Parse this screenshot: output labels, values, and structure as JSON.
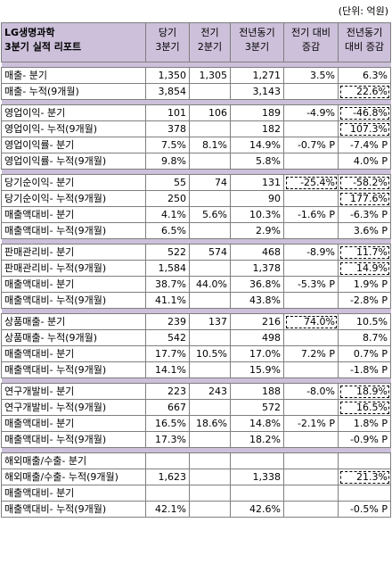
{
  "unit_label": "(단위: 억원)",
  "header": {
    "title_line1": "LG생명과학",
    "title_line2": "3분기 실적 리포트",
    "col1_line1": "당기",
    "col1_line2": "3분기",
    "col2_line1": "전기",
    "col2_line2": "2분기",
    "col3_line1": "전년동기",
    "col3_line2": "3분기",
    "col4_line1": "전기 대비",
    "col4_line2": "증감",
    "col5_line1": "전년동기",
    "col5_line2": "대비 증감"
  },
  "groups": [
    {
      "rows": [
        {
          "label": "매출- 분기",
          "cur": "1,350",
          "prev": "1,305",
          "yoy": "1,271",
          "qoq_chg": "3.5%",
          "yoy_chg": "6.3%",
          "qoq_box": false,
          "yoy_box": false
        },
        {
          "label": "매출- 누적(9개월)",
          "cur": "3,854",
          "prev": "",
          "yoy": "3,143",
          "qoq_chg": "",
          "yoy_chg": "22.6%",
          "qoq_box": false,
          "yoy_box": true
        }
      ]
    },
    {
      "rows": [
        {
          "label": "영업이익- 분기",
          "cur": "101",
          "prev": "106",
          "yoy": "189",
          "qoq_chg": "-4.9%",
          "yoy_chg": "-46.8%",
          "qoq_box": false,
          "yoy_box": true
        },
        {
          "label": "영업이익- 누적(9개월)",
          "cur": "378",
          "prev": "",
          "yoy": "182",
          "qoq_chg": "",
          "yoy_chg": "107.3%",
          "qoq_box": false,
          "yoy_box": true
        },
        {
          "label": "영업이익률- 분기",
          "cur": "7.5%",
          "prev": "8.1%",
          "yoy": "14.9%",
          "qoq_chg": "-0.7% P",
          "yoy_chg": "-7.4% P",
          "qoq_box": false,
          "yoy_box": false
        },
        {
          "label": "영업이익률- 누적(9개월)",
          "cur": "9.8%",
          "prev": "",
          "yoy": "5.8%",
          "qoq_chg": "",
          "yoy_chg": "4.0% P",
          "qoq_box": false,
          "yoy_box": false
        }
      ]
    },
    {
      "rows": [
        {
          "label": "당기순이익- 분기",
          "cur": "55",
          "prev": "74",
          "yoy": "131",
          "qoq_chg": "-25.4%",
          "yoy_chg": "-58.2%",
          "qoq_box": true,
          "yoy_box": true
        },
        {
          "label": "당기순이익- 누적(9개월)",
          "cur": "250",
          "prev": "",
          "yoy": "90",
          "qoq_chg": "",
          "yoy_chg": "177.6%",
          "qoq_box": false,
          "yoy_box": true
        },
        {
          "label": "매출액대비- 분기",
          "cur": "4.1%",
          "prev": "5.6%",
          "yoy": "10.3%",
          "qoq_chg": "-1.6% P",
          "yoy_chg": "-6.3% P",
          "qoq_box": false,
          "yoy_box": false
        },
        {
          "label": "매출액대비- 누적(9개월)",
          "cur": "6.5%",
          "prev": "",
          "yoy": "2.9%",
          "qoq_chg": "",
          "yoy_chg": "3.6% P",
          "qoq_box": false,
          "yoy_box": false
        }
      ]
    },
    {
      "rows": [
        {
          "label": "판매관리비- 분기",
          "cur": "522",
          "prev": "574",
          "yoy": "468",
          "qoq_chg": "-8.9%",
          "yoy_chg": "11.7%",
          "qoq_box": false,
          "yoy_box": true
        },
        {
          "label": "판매관리비- 누적(9개월)",
          "cur": "1,584",
          "prev": "",
          "yoy": "1,378",
          "qoq_chg": "",
          "yoy_chg": "14.9%",
          "qoq_box": false,
          "yoy_box": true
        },
        {
          "label": "매출액대비- 분기",
          "cur": "38.7%",
          "prev": "44.0%",
          "yoy": "36.8%",
          "qoq_chg": "-5.3% P",
          "yoy_chg": "1.9% P",
          "qoq_box": false,
          "yoy_box": false
        },
        {
          "label": "매출액대비- 누적(9개월)",
          "cur": "41.1%",
          "prev": "",
          "yoy": "43.8%",
          "qoq_chg": "",
          "yoy_chg": "-2.8% P",
          "qoq_box": false,
          "yoy_box": false
        }
      ]
    },
    {
      "rows": [
        {
          "label": "상품매출- 분기",
          "cur": "239",
          "prev": "137",
          "yoy": "216",
          "qoq_chg": "74.0%",
          "yoy_chg": "10.5%",
          "qoq_box": true,
          "yoy_box": false
        },
        {
          "label": "상품매출- 누적(9개월)",
          "cur": "542",
          "prev": "",
          "yoy": "498",
          "qoq_chg": "",
          "yoy_chg": "8.7%",
          "qoq_box": false,
          "yoy_box": false
        },
        {
          "label": "매출액대비- 분기",
          "cur": "17.7%",
          "prev": "10.5%",
          "yoy": "17.0%",
          "qoq_chg": "7.2% P",
          "yoy_chg": "0.7% P",
          "qoq_box": false,
          "yoy_box": false
        },
        {
          "label": "매출액대비- 누적(9개월)",
          "cur": "14.1%",
          "prev": "",
          "yoy": "15.9%",
          "qoq_chg": "",
          "yoy_chg": "-1.8% P",
          "qoq_box": false,
          "yoy_box": false
        }
      ]
    },
    {
      "rows": [
        {
          "label": "연구개발비- 분기",
          "cur": "223",
          "prev": "243",
          "yoy": "188",
          "qoq_chg": "-8.0%",
          "yoy_chg": "18.9%",
          "qoq_box": false,
          "yoy_box": true
        },
        {
          "label": "연구개발비- 누적(9개월)",
          "cur": "667",
          "prev": "",
          "yoy": "572",
          "qoq_chg": "",
          "yoy_chg": "16.5%",
          "qoq_box": false,
          "yoy_box": true
        },
        {
          "label": "매출액대비- 분기",
          "cur": "16.5%",
          "prev": "18.6%",
          "yoy": "14.8%",
          "qoq_chg": "-2.1% P",
          "yoy_chg": "1.8% P",
          "qoq_box": false,
          "yoy_box": false
        },
        {
          "label": "매출액대비- 누적(9개월)",
          "cur": "17.3%",
          "prev": "",
          "yoy": "18.2%",
          "qoq_chg": "",
          "yoy_chg": "-0.9% P",
          "qoq_box": false,
          "yoy_box": false
        }
      ]
    },
    {
      "rows": [
        {
          "label": "해외매출/수출- 분기",
          "cur": "",
          "prev": "",
          "yoy": "",
          "qoq_chg": "",
          "yoy_chg": "",
          "qoq_box": false,
          "yoy_box": false
        },
        {
          "label": "해외매출/수출- 누적(9개월)",
          "cur": "1,623",
          "prev": "",
          "yoy": "1,338",
          "qoq_chg": "",
          "yoy_chg": "21.3%",
          "qoq_box": false,
          "yoy_box": true
        },
        {
          "label": "매출액대비- 분기",
          "cur": "",
          "prev": "",
          "yoy": "",
          "qoq_chg": "",
          "yoy_chg": "",
          "qoq_box": false,
          "yoy_box": false
        },
        {
          "label": "매출액대비- 누적(9개월)",
          "cur": "42.1%",
          "prev": "",
          "yoy": "42.6%",
          "qoq_chg": "",
          "yoy_chg": "-0.5% P",
          "qoq_box": false,
          "yoy_box": false
        }
      ]
    }
  ]
}
